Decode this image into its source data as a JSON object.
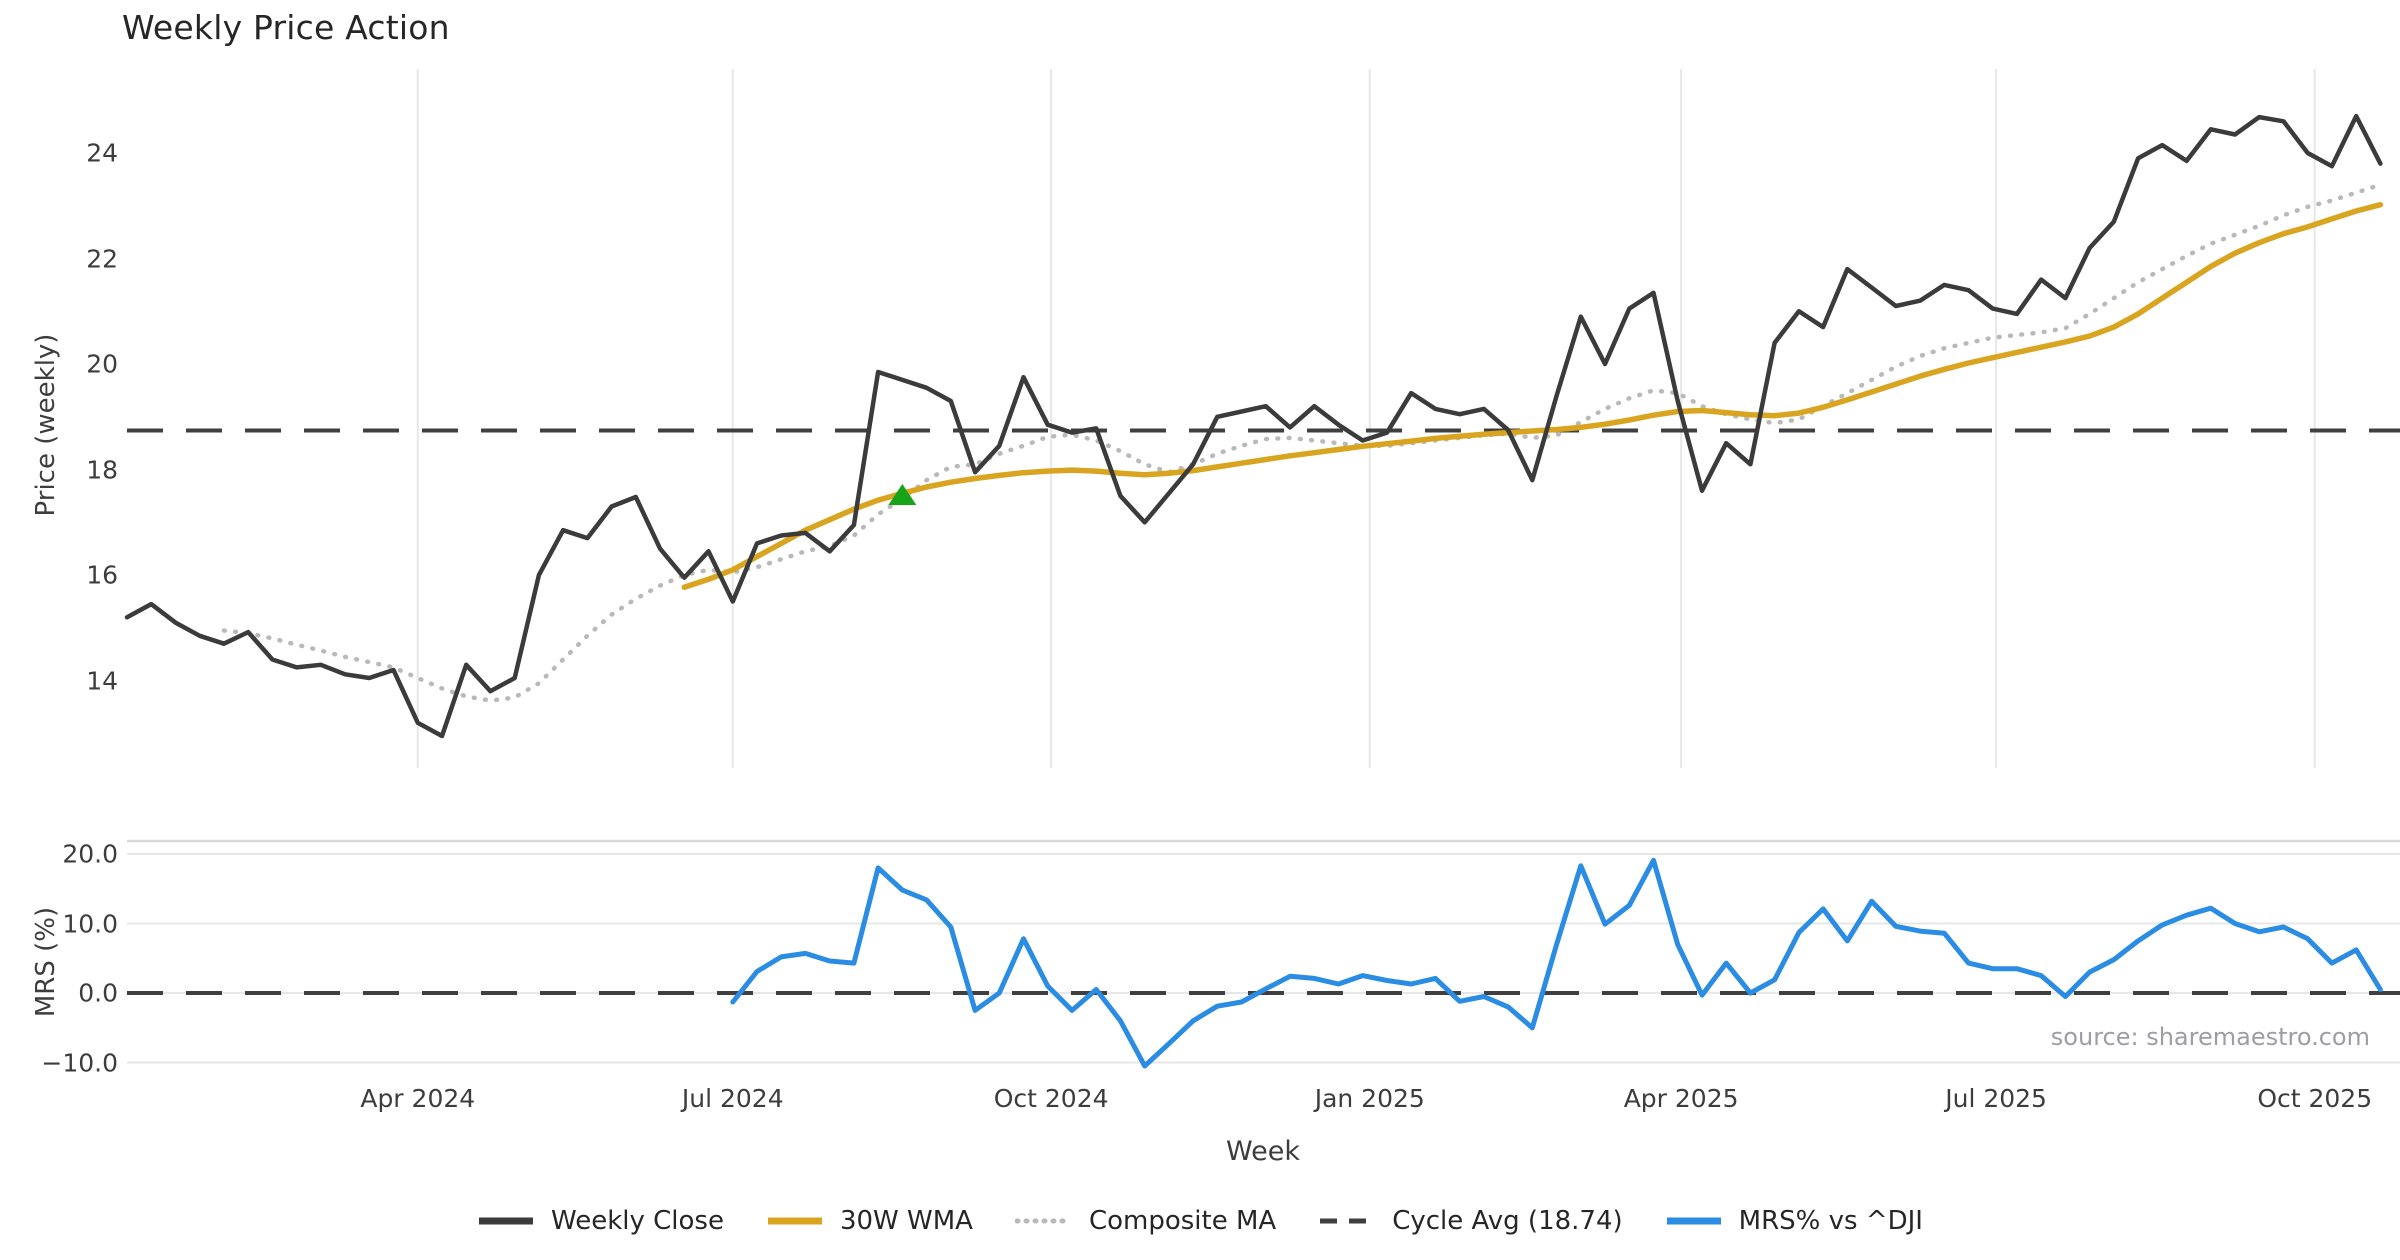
{
  "title": "Weekly Price Action",
  "source_note": "source: sharemaestro.com",
  "xlabel": "Week",
  "price_panel": {
    "ylabel": "Price (weekly)",
    "yticks": [
      24,
      22,
      20,
      18,
      16,
      14
    ],
    "cycle_avg_value": 18.74
  },
  "mrs_panel": {
    "ylabel": "MRS (%)",
    "yticks": [
      {
        "label": "20.0",
        "value": 20
      },
      {
        "label": "10.0",
        "value": 10
      },
      {
        "label": "0.0",
        "value": 0
      },
      {
        "label": "−10.0",
        "value": -10
      }
    ],
    "zero_line_value": 0
  },
  "xticks": [
    {
      "label": "Apr 2024",
      "week": 12
    },
    {
      "label": "Jul 2024",
      "week": 25
    },
    {
      "label": "Oct 2024",
      "week": 38.14
    },
    {
      "label": "Jan 2025",
      "week": 51.29
    },
    {
      "label": "Apr 2025",
      "week": 64.14
    },
    {
      "label": "Jul 2025",
      "week": 77.14
    },
    {
      "label": "Oct 2025",
      "week": 90.29
    }
  ],
  "legend": [
    {
      "label": "Weekly Close",
      "style": "solid",
      "color": "#3b3b3b"
    },
    {
      "label": "30W WMA",
      "style": "solid",
      "color": "#d9a521"
    },
    {
      "label": "Composite MA",
      "style": "dotted",
      "color": "#b9b9b9"
    },
    {
      "label": "Cycle Avg (18.74)",
      "style": "dashed",
      "color": "#3f3f3f"
    },
    {
      "label": "MRS% vs ^DJI",
      "style": "solid",
      "color": "#2a8ce2"
    }
  ],
  "colors": {
    "weekly_close": "#3b3b3b",
    "wma_30w": "#d9a521",
    "composite_ma": "#b9b9b9",
    "cycle_avg": "#3f3f3f",
    "mrs": "#2a8ce2",
    "signal_marker": "#17a317",
    "gridline": "#e7e7e7",
    "panel_spine": "#d8d8d8"
  },
  "chart_data": {
    "type": "line",
    "x_start_date": "2024-01-08",
    "x_step_days": 7,
    "n_weeks": 94,
    "title": "Weekly Price Action",
    "xlabel": "Week",
    "panels": [
      {
        "name": "price",
        "ylabel": "Price (weekly)",
        "ylim": [
          12.3,
          25.6
        ],
        "grid": "vertical-only",
        "legend_position": "below-figure",
        "cycle_avg_line": 18.74,
        "signal_marker": {
          "shape": "triangle-up",
          "week_index": 32,
          "value": 17.5
        },
        "series": [
          {
            "name": "Weekly Close",
            "values": [
              15.2,
              15.45,
              15.1,
              14.85,
              14.7,
              14.92,
              14.4,
              14.25,
              14.3,
              14.12,
              14.05,
              14.2,
              13.2,
              12.95,
              14.3,
              13.8,
              14.05,
              16.0,
              16.85,
              16.7,
              17.3,
              17.48,
              16.5,
              15.95,
              16.45,
              15.5,
              16.6,
              16.75,
              16.8,
              16.45,
              16.95,
              19.85,
              19.7,
              19.55,
              19.3,
              17.95,
              18.45,
              19.75,
              18.85,
              18.7,
              18.78,
              17.5,
              17.0,
              17.55,
              18.1,
              19.0,
              19.1,
              19.2,
              18.8,
              19.2,
              18.85,
              18.55,
              18.7,
              19.45,
              19.15,
              19.05,
              19.15,
              18.75,
              17.8,
              19.4,
              20.9,
              20.0,
              21.05,
              21.35,
              19.3,
              17.6,
              18.5,
              18.1,
              20.4,
              21.0,
              20.7,
              21.8,
              21.45,
              21.1,
              21.2,
              21.5,
              21.4,
              21.05,
              20.95,
              21.6,
              21.25,
              22.2,
              22.7,
              23.9,
              24.15,
              23.85,
              24.45,
              24.35,
              24.68,
              24.6,
              24.0,
              23.75,
              24.7,
              23.8
            ]
          },
          {
            "name": "30W WMA",
            "values": [
              null,
              null,
              null,
              null,
              null,
              null,
              null,
              null,
              null,
              null,
              null,
              null,
              null,
              null,
              null,
              null,
              null,
              null,
              null,
              null,
              null,
              null,
              null,
              15.77,
              15.92,
              16.1,
              16.35,
              16.6,
              16.85,
              17.05,
              17.25,
              17.42,
              17.55,
              17.67,
              17.76,
              17.83,
              17.89,
              17.94,
              17.97,
              17.99,
              17.97,
              17.93,
              17.9,
              17.93,
              17.98,
              18.05,
              18.12,
              18.19,
              18.26,
              18.32,
              18.38,
              18.44,
              18.49,
              18.54,
              18.59,
              18.63,
              18.67,
              18.7,
              18.73,
              18.76,
              18.8,
              18.86,
              18.94,
              19.03,
              19.1,
              19.12,
              19.08,
              19.04,
              19.02,
              19.07,
              19.18,
              19.32,
              19.47,
              19.62,
              19.77,
              19.9,
              20.02,
              20.12,
              20.22,
              20.32,
              20.42,
              20.53,
              20.7,
              20.95,
              21.25,
              21.55,
              21.85,
              22.1,
              22.3,
              22.47,
              22.6,
              22.75,
              22.9,
              23.02
            ]
          },
          {
            "name": "Composite MA",
            "values": [
              null,
              null,
              null,
              null,
              14.95,
              14.9,
              14.8,
              14.68,
              14.57,
              14.45,
              14.35,
              14.25,
              14.05,
              13.85,
              13.7,
              13.62,
              13.68,
              13.95,
              14.4,
              14.85,
              15.25,
              15.55,
              15.8,
              16.0,
              16.1,
              16.05,
              16.15,
              16.3,
              16.45,
              16.55,
              16.75,
              17.15,
              17.45,
              17.8,
              18.05,
              18.1,
              18.3,
              18.45,
              18.62,
              18.66,
              18.55,
              18.35,
              18.1,
              17.95,
              18.1,
              18.3,
              18.45,
              18.58,
              18.6,
              18.55,
              18.5,
              18.45,
              18.45,
              18.5,
              18.55,
              18.6,
              18.65,
              18.68,
              18.6,
              18.65,
              18.9,
              19.15,
              19.35,
              19.5,
              19.45,
              19.2,
              19.05,
              18.95,
              18.88,
              18.95,
              19.2,
              19.45,
              19.7,
              19.95,
              20.15,
              20.3,
              20.4,
              20.5,
              20.55,
              20.6,
              20.68,
              20.95,
              21.25,
              21.55,
              21.8,
              22.05,
              22.28,
              22.45,
              22.62,
              22.82,
              22.98,
              23.1,
              23.25,
              23.4
            ]
          }
        ]
      },
      {
        "name": "mrs",
        "ylabel": "MRS (%)",
        "ylim": [
          -12.4,
          21.7
        ],
        "grid": "horizontal-only",
        "zero_line": 0,
        "series": [
          {
            "name": "MRS% vs ^DJI",
            "values": [
              null,
              null,
              null,
              null,
              null,
              null,
              null,
              null,
              null,
              null,
              null,
              null,
              null,
              null,
              null,
              null,
              null,
              null,
              null,
              null,
              null,
              null,
              null,
              null,
              null,
              -1.3,
              3.1,
              5.2,
              5.7,
              4.6,
              4.3,
              18.0,
              14.8,
              13.4,
              9.5,
              -2.5,
              0.0,
              7.8,
              1.0,
              -2.5,
              0.5,
              -4.0,
              -10.5,
              -7.3,
              -4.0,
              -1.9,
              -1.3,
              0.6,
              2.4,
              2.1,
              1.3,
              2.5,
              1.8,
              1.3,
              2.1,
              -1.2,
              -0.5,
              -2.0,
              -5.0,
              7.0,
              18.3,
              9.9,
              12.6,
              19.1,
              7.0,
              -0.3,
              4.3,
              0.0,
              1.9,
              8.7,
              12.1,
              7.5,
              13.2,
              9.6,
              8.9,
              8.6,
              4.3,
              3.5,
              3.5,
              2.5,
              -0.5,
              3.0,
              4.8,
              7.5,
              9.8,
              11.2,
              12.2,
              10.0,
              8.8,
              9.5,
              7.8,
              4.3,
              6.2,
              0.5
            ]
          }
        ]
      }
    ]
  }
}
